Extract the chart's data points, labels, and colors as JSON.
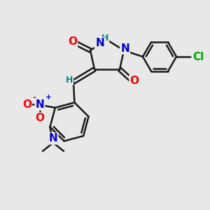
{
  "bg_color": "#e8e8e8",
  "bond_color": "#1a1a1a",
  "bond_width": 1.8,
  "atom_colors": {
    "O": "#ff0000",
    "N": "#0000cc",
    "Cl": "#00aa00",
    "H": "#008888",
    "C": "#1a1a1a"
  },
  "font_size_large": 11,
  "font_size_small": 9,
  "font_size_tiny": 7.5
}
